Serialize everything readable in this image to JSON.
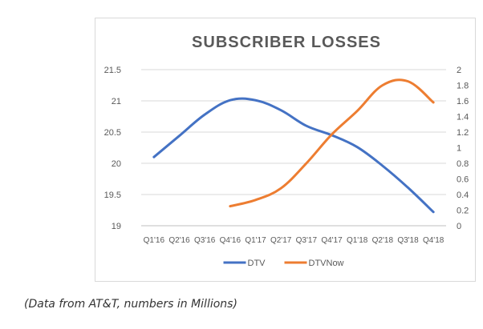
{
  "chart_data": {
    "type": "line",
    "title": "SUBSCRIBER LOSSES",
    "categories": [
      "Q1'16",
      "Q2'16",
      "Q3'16",
      "Q4'16",
      "Q1'17",
      "Q2'17",
      "Q3'17",
      "Q4'17",
      "Q1'18",
      "Q2'18",
      "Q3'18",
      "Q4'18"
    ],
    "y_left": {
      "ylim": [
        19,
        21.5
      ],
      "ticks": [
        "19",
        "19.5",
        "20",
        "20.5",
        "21",
        "21.5"
      ]
    },
    "y_right": {
      "ylim": [
        0,
        2
      ],
      "ticks": [
        "0",
        "0.2",
        "0.4",
        "0.6",
        "0.8",
        "1",
        "1.2",
        "1.4",
        "1.6",
        "1.8",
        "2"
      ]
    },
    "grid": true,
    "legend_position": "bottom",
    "series": [
      {
        "name": "DTV",
        "axis": "left",
        "color": "#4472c4",
        "values": [
          20.1,
          20.44,
          20.78,
          21.01,
          21.01,
          20.85,
          20.6,
          20.45,
          20.26,
          19.96,
          19.61,
          19.22
        ]
      },
      {
        "name": "DTVNow",
        "axis": "right",
        "color": "#ed7d31",
        "values": [
          null,
          null,
          null,
          0.25,
          0.33,
          0.48,
          0.8,
          1.17,
          1.47,
          1.8,
          1.85,
          1.58
        ]
      }
    ]
  },
  "caption": "(Data from AT&T, numbers in Millions)"
}
